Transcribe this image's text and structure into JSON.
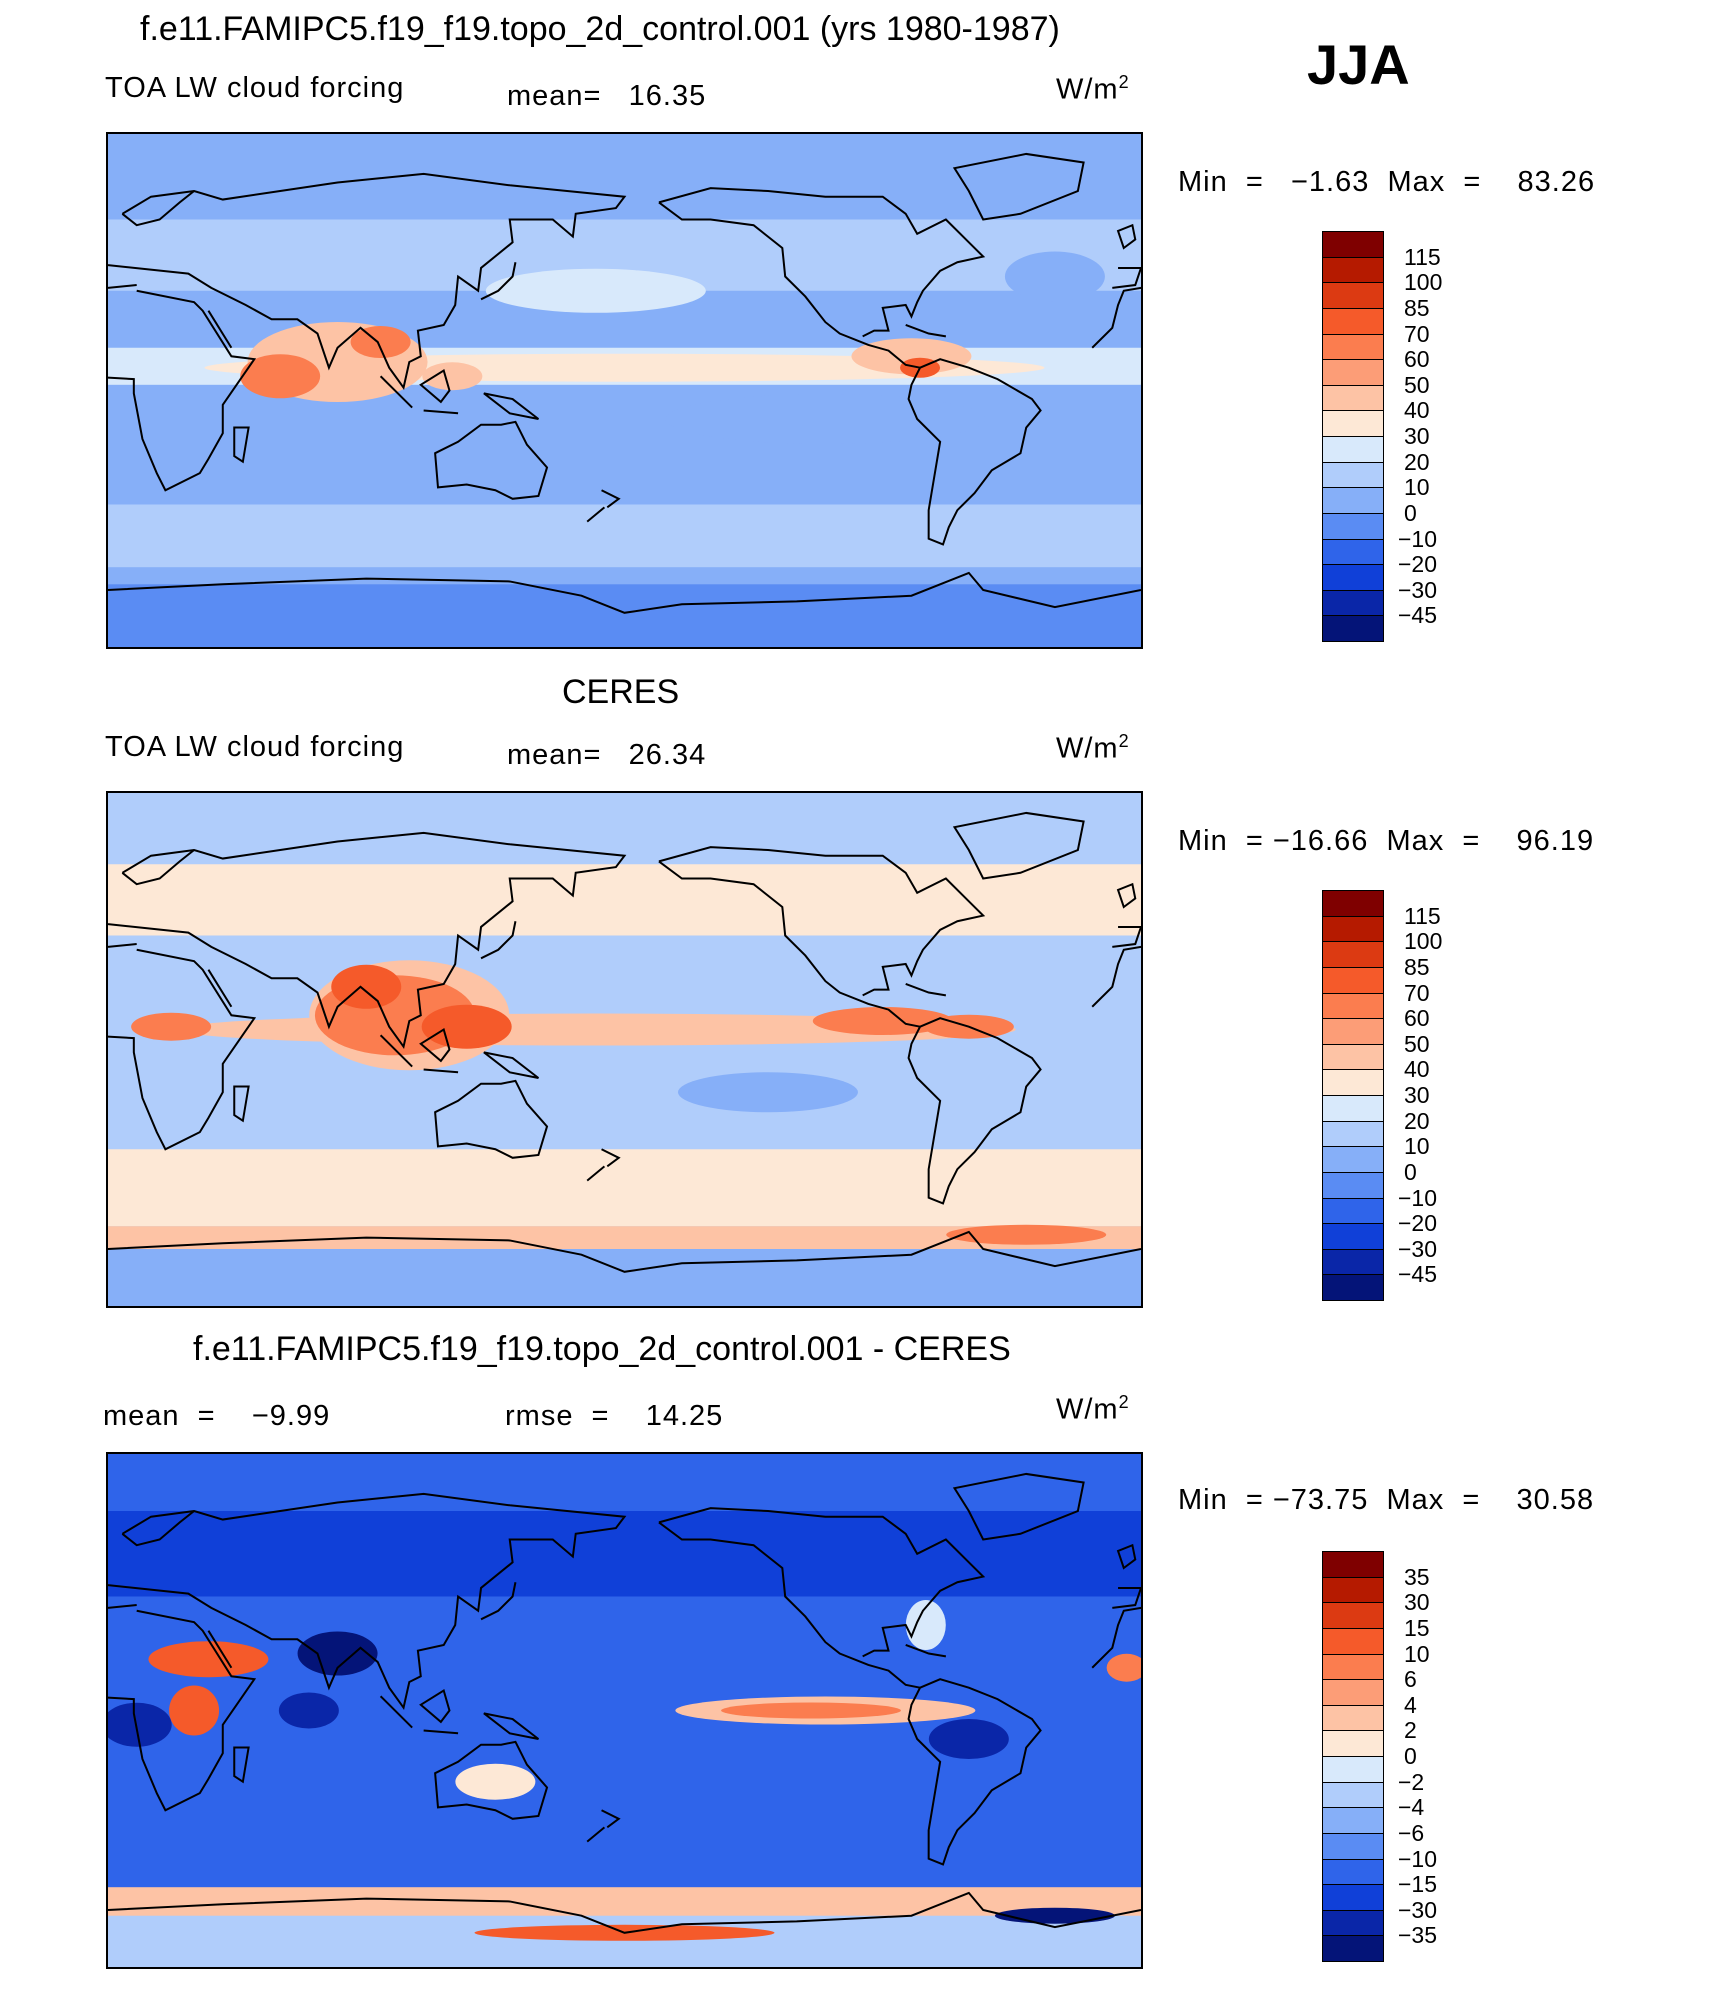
{
  "season": "JJA",
  "panels": [
    {
      "title": "f.e11.FAMIPC5.f19_f19.topo_2d_control.001 (yrs 1980-1987)",
      "variable": "TOA LW cloud forcing",
      "stat_text": "mean=   16.35",
      "stat2_text": "",
      "units_text": "W/m",
      "units_sup": "2",
      "minmax_text": "Min  =   −1.63  Max  =    83.26",
      "colorbar_levels": [
        "115",
        "100",
        "85",
        "70",
        "60",
        "50",
        "40",
        "30",
        "20",
        "10",
        "0",
        "−10",
        "−20",
        "−30",
        "−45"
      ],
      "kind": "model"
    },
    {
      "title": "CERES",
      "variable": "TOA LW cloud forcing",
      "stat_text": "mean=   26.34",
      "stat2_text": "",
      "units_text": "W/m",
      "units_sup": "2",
      "minmax_text": "Min  = −16.66  Max  =    96.19",
      "colorbar_levels": [
        "115",
        "100",
        "85",
        "70",
        "60",
        "50",
        "40",
        "30",
        "20",
        "10",
        "0",
        "−10",
        "−20",
        "−30",
        "−45"
      ],
      "kind": "obs"
    },
    {
      "title": "f.e11.FAMIPC5.f19_f19.topo_2d_control.001 - CERES",
      "variable": "",
      "stat_text": "mean  =    −9.99",
      "stat2_text": "rmse  =    14.25",
      "units_text": "W/m",
      "units_sup": "2",
      "minmax_text": "Min  = −73.75  Max  =    30.58",
      "colorbar_levels": [
        "35",
        "30",
        "15",
        "10",
        "6",
        "4",
        "2",
        "0",
        "−2",
        "−4",
        "−6",
        "−10",
        "−15",
        "−30",
        "−35"
      ],
      "kind": "diff"
    }
  ],
  "chart_data": [
    {
      "type": "heatmap",
      "title": "f.e11.FAMIPC5.f19_f19.topo_2d_control.001 (yrs 1980-1987)",
      "variable": "TOA LW cloud forcing",
      "units": "W/m2",
      "season": "JJA",
      "mean": 16.35,
      "min": -1.63,
      "max": 83.26,
      "contour_levels": [
        -45,
        -30,
        -20,
        -10,
        0,
        10,
        20,
        30,
        40,
        50,
        60,
        70,
        85,
        100,
        115
      ]
    },
    {
      "type": "heatmap",
      "title": "CERES",
      "variable": "TOA LW cloud forcing",
      "units": "W/m2",
      "season": "JJA",
      "mean": 26.34,
      "min": -16.66,
      "max": 96.19,
      "contour_levels": [
        -45,
        -30,
        -20,
        -10,
        0,
        10,
        20,
        30,
        40,
        50,
        60,
        70,
        85,
        100,
        115
      ]
    },
    {
      "type": "heatmap",
      "title": "f.e11.FAMIPC5.f19_f19.topo_2d_control.001 - CERES",
      "units": "W/m2",
      "season": "JJA",
      "mean": -9.99,
      "rmse": 14.25,
      "min": -73.75,
      "max": 30.58,
      "contour_levels": [
        -35,
        -30,
        -15,
        -10,
        -6,
        -4,
        -2,
        0,
        2,
        4,
        6,
        10,
        15,
        30,
        35
      ]
    }
  ],
  "colorbar_colors": [
    "#7f0000",
    "#b51a00",
    "#dc3a12",
    "#f55a2a",
    "#fb7d4f",
    "#fc9d77",
    "#fdc3a5",
    "#fde8d6",
    "#d8e9fb",
    "#b0cdfb",
    "#86aff8",
    "#5a8cf3",
    "#2f64ea",
    "#1040d8",
    "#0a26a8",
    "#041478"
  ]
}
